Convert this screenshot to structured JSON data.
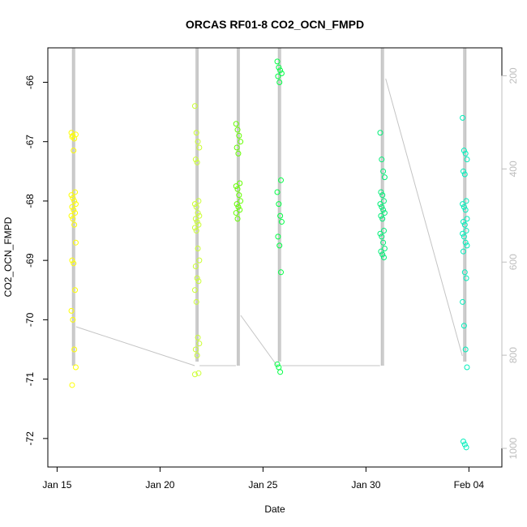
{
  "chart_data": {
    "type": "scatter",
    "title": "ORCAS RF01-8 CO2_OCN_FMPD",
    "xlabel": "Date",
    "ylabel": "CO2_OCN_FMPD",
    "x_ticks": [
      "Jan 15",
      "Jan 20",
      "Jan 25",
      "Jan 30",
      "Feb 04"
    ],
    "x_tick_days": [
      15,
      20,
      25,
      30,
      35
    ],
    "xlim": [
      14.55,
      36.6
    ],
    "y_ticks": [
      "-66",
      "-67",
      "-68",
      "-69",
      "-70",
      "-71",
      "-72"
    ],
    "y_tick_values": [
      -66,
      -67,
      -68,
      -69,
      -70,
      -71,
      -72
    ],
    "ylim": [
      -72.48,
      -65.42
    ],
    "right_axis": {
      "ticks": [
        "200",
        "400",
        "600",
        "800",
        "1000"
      ],
      "tick_values": [
        200,
        400,
        600,
        800,
        1000
      ],
      "lim": [
        1040,
        140
      ],
      "color": "#bdbdbd"
    },
    "flights": [
      {
        "day": 15.8,
        "color": "#ffff00",
        "values": [
          -66.85,
          -66.9,
          -66.95,
          -66.88,
          -66.92,
          -67.15,
          -67.85,
          -67.9,
          -67.95,
          -68.0,
          -68.05,
          -68.1,
          -68.15,
          -68.2,
          -68.25,
          -68.3,
          -68.4,
          -68.7,
          -69.0,
          -69.05,
          -69.5,
          -69.85,
          -70.0,
          -70.5,
          -70.8,
          -71.1
        ]
      },
      {
        "day": 21.8,
        "color": "#ccff33",
        "values": [
          -66.4,
          -66.85,
          -67.0,
          -67.1,
          -67.3,
          -67.35,
          -68.0,
          -68.05,
          -68.1,
          -68.2,
          -68.25,
          -68.3,
          -68.35,
          -68.4,
          -68.45,
          -68.5,
          -68.8,
          -69.0,
          -69.1,
          -69.3,
          -69.35,
          -69.5,
          -69.7,
          -70.3,
          -70.4,
          -70.5,
          -70.6,
          -70.9,
          -70.92
        ]
      },
      {
        "day": 23.8,
        "color": "#66ff00",
        "values": [
          -66.7,
          -66.8,
          -66.9,
          -67.0,
          -67.1,
          -67.2,
          -67.7,
          -67.75,
          -67.8,
          -67.9,
          -68.0,
          -68.05,
          -68.1,
          -68.15,
          -68.2,
          -68.3
        ]
      },
      {
        "day": 25.8,
        "color": "#00ff44",
        "values": [
          -65.65,
          -65.75,
          -65.8,
          -65.85,
          -65.9,
          -66.0,
          -67.65,
          -67.85,
          -68.05,
          -68.25,
          -68.35,
          -68.6,
          -68.75,
          -69.2,
          -70.75,
          -70.8,
          -70.88
        ]
      },
      {
        "day": 30.8,
        "color": "#00ee77",
        "values": [
          -66.85,
          -67.3,
          -67.5,
          -67.6,
          -67.85,
          -67.9,
          -68.0,
          -68.05,
          -68.1,
          -68.15,
          -68.2,
          -68.25,
          -68.3,
          -68.5,
          -68.55,
          -68.6,
          -68.7,
          -68.8,
          -68.85,
          -68.9,
          -68.95
        ]
      },
      {
        "day": 34.8,
        "color": "#00eebb",
        "values": [
          -66.6,
          -67.15,
          -67.2,
          -67.3,
          -67.5,
          -67.55,
          -68.0,
          -68.05,
          -68.1,
          -68.15,
          -68.3,
          -68.35,
          -68.4,
          -68.5,
          -68.55,
          -68.6,
          -68.7,
          -68.75,
          -68.85,
          -69.2,
          -69.3,
          -69.7,
          -70.1,
          -70.5,
          -70.8,
          -72.05,
          -72.1,
          -72.15
        ]
      }
    ]
  }
}
